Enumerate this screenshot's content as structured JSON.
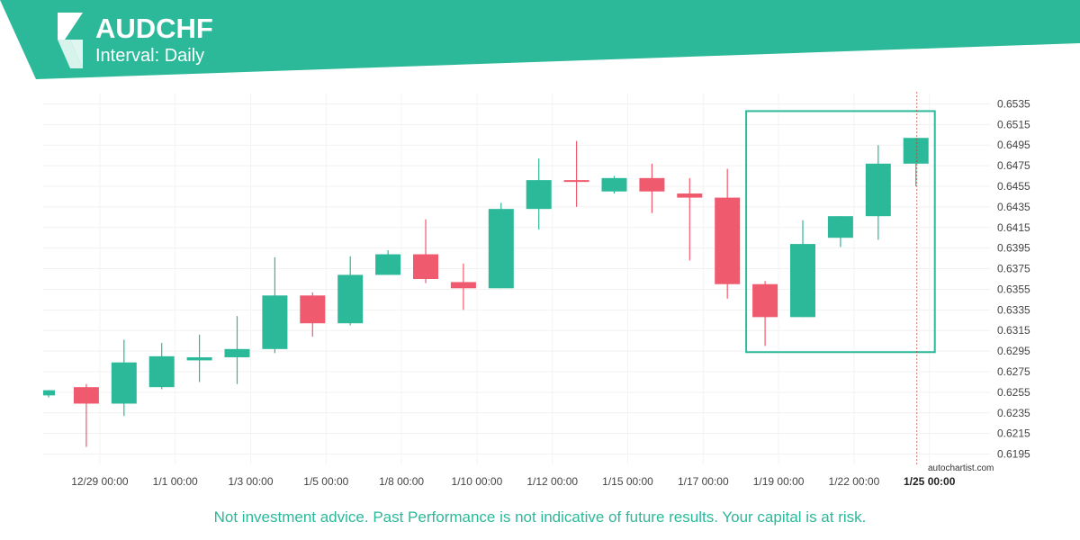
{
  "header": {
    "symbol": "AUDCHF",
    "interval": "Interval: Daily",
    "brand_color": "#2bb99a"
  },
  "watermark": "autochartist.com",
  "disclaimer": "Not investment advice. Past Performance is not indicative of future results. Your capital is at risk.",
  "colors": {
    "up": "#2bb99a",
    "down": "#f05a6e",
    "pattern_box": "#2bb99a"
  },
  "chart_data": {
    "type": "candlestick",
    "ylim": [
      0.6185,
      0.6545
    ],
    "yticks": [
      "0.6535",
      "0.6515",
      "0.6495",
      "0.6475",
      "0.6455",
      "0.6435",
      "0.6415",
      "0.6395",
      "0.6375",
      "0.6355",
      "0.6335",
      "0.6315",
      "0.6295",
      "0.6275",
      "0.6255",
      "0.6235",
      "0.6215",
      "0.6195"
    ],
    "xticks": [
      {
        "label": "12/29 00:00",
        "index": 1
      },
      {
        "label": "1/1 00:00",
        "index": 3
      },
      {
        "label": "1/3 00:00",
        "index": 5
      },
      {
        "label": "1/5 00:00",
        "index": 7
      },
      {
        "label": "1/8 00:00",
        "index": 9
      },
      {
        "label": "1/10 00:00",
        "index": 11
      },
      {
        "label": "1/12 00:00",
        "index": 13
      },
      {
        "label": "1/15 00:00",
        "index": 15
      },
      {
        "label": "1/17 00:00",
        "index": 17
      },
      {
        "label": "1/19 00:00",
        "index": 19
      },
      {
        "label": "1/22 00:00",
        "index": 21
      },
      {
        "label": "1/25 00:00",
        "index": 23
      }
    ],
    "candles": [
      {
        "o": 0.6252,
        "h": 0.6257,
        "l": 0.625,
        "c": 0.6257
      },
      {
        "o": 0.626,
        "h": 0.6263,
        "l": 0.6202,
        "c": 0.6244
      },
      {
        "o": 0.6244,
        "h": 0.6306,
        "l": 0.6232,
        "c": 0.6284
      },
      {
        "o": 0.626,
        "h": 0.6303,
        "l": 0.6258,
        "c": 0.629
      },
      {
        "o": 0.6286,
        "h": 0.6311,
        "l": 0.6265,
        "c": 0.6289
      },
      {
        "o": 0.6289,
        "h": 0.6329,
        "l": 0.6263,
        "c": 0.6297
      },
      {
        "o": 0.6297,
        "h": 0.6386,
        "l": 0.6293,
        "c": 0.6349
      },
      {
        "o": 0.6349,
        "h": 0.6352,
        "l": 0.6309,
        "c": 0.6322
      },
      {
        "o": 0.6322,
        "h": 0.6387,
        "l": 0.632,
        "c": 0.6369
      },
      {
        "o": 0.6369,
        "h": 0.6393,
        "l": 0.6369,
        "c": 0.6389
      },
      {
        "o": 0.6389,
        "h": 0.6423,
        "l": 0.6361,
        "c": 0.6365
      },
      {
        "o": 0.6362,
        "h": 0.638,
        "l": 0.6335,
        "c": 0.6356
      },
      {
        "o": 0.6356,
        "h": 0.6439,
        "l": 0.6356,
        "c": 0.6433
      },
      {
        "o": 0.6433,
        "h": 0.6482,
        "l": 0.6413,
        "c": 0.6461
      },
      {
        "o": 0.6461,
        "h": 0.6499,
        "l": 0.6435,
        "c": 0.646
      },
      {
        "o": 0.645,
        "h": 0.6465,
        "l": 0.6448,
        "c": 0.6463
      },
      {
        "o": 0.6463,
        "h": 0.6477,
        "l": 0.6429,
        "c": 0.645
      },
      {
        "o": 0.6448,
        "h": 0.6463,
        "l": 0.6383,
        "c": 0.6444
      },
      {
        "o": 0.6444,
        "h": 0.6472,
        "l": 0.6346,
        "c": 0.636
      },
      {
        "o": 0.636,
        "h": 0.6363,
        "l": 0.63,
        "c": 0.6328
      },
      {
        "o": 0.6328,
        "h": 0.6422,
        "l": 0.6328,
        "c": 0.6399
      },
      {
        "o": 0.6405,
        "h": 0.6426,
        "l": 0.6396,
        "c": 0.6426
      },
      {
        "o": 0.6426,
        "h": 0.6495,
        "l": 0.6403,
        "c": 0.6477
      },
      {
        "o": 0.6477,
        "h": 0.6502,
        "l": 0.6455,
        "c": 0.6502
      }
    ],
    "pattern_box": {
      "start_index": 19,
      "end_index": 23,
      "y_top": 0.6528,
      "y_bottom": 0.6294
    },
    "current_marker_index": 23
  }
}
